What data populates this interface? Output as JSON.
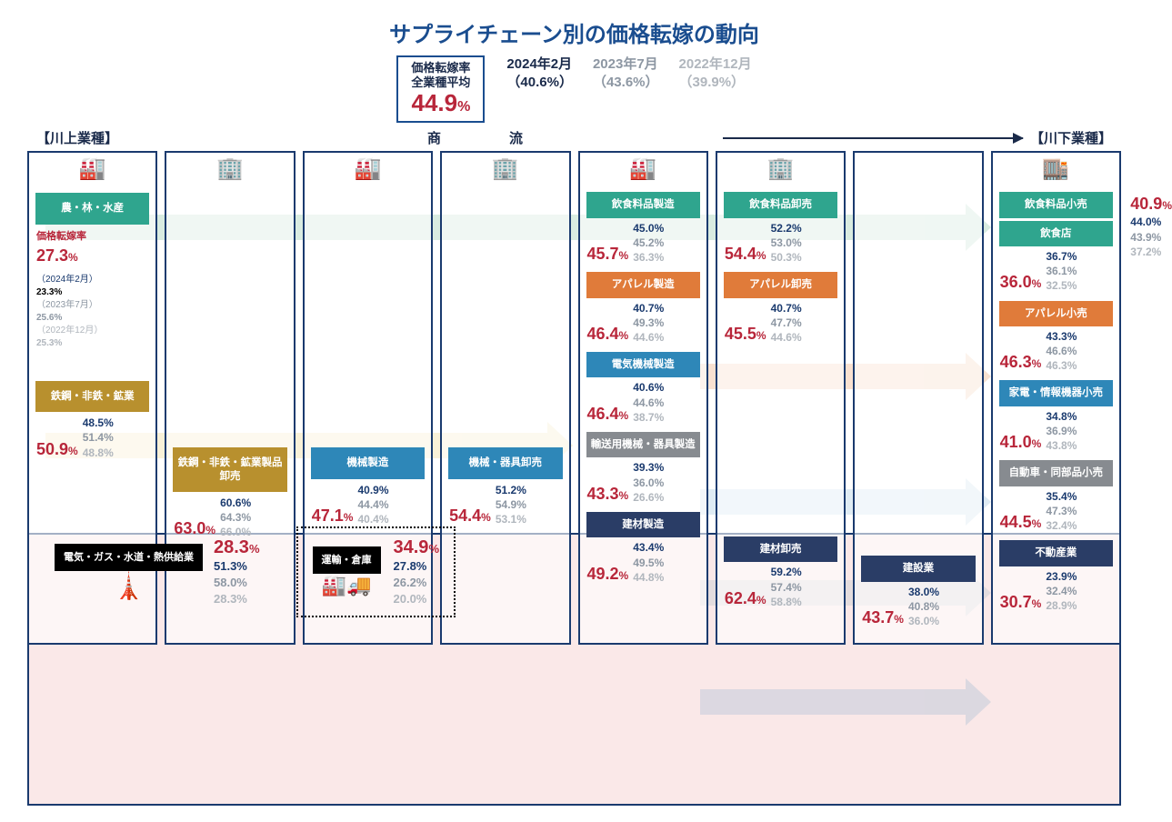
{
  "title": "サプライチェーン別の価格転嫁の動向",
  "avg": {
    "l1": "価格転嫁率",
    "l2": "全業種平均",
    "v": "44.9"
  },
  "periods": [
    {
      "d": "2024年2月",
      "v": "（40.6%）",
      "cls": ""
    },
    {
      "d": "2023年7月",
      "v": "（43.6%）",
      "cls": "gray"
    },
    {
      "d": "2022年12月",
      "v": "（39.9%）",
      "cls": "lgray"
    }
  ],
  "flow": {
    "left": "【川上業種】",
    "mid": "商　流",
    "right": "【川下業種】"
  },
  "colors": {
    "green": "#2fa58e",
    "olive": "#b8902e",
    "blue": "#2e87b8",
    "orange": "#e07b3a",
    "gray": "#878b90",
    "navy": "#2a3d66",
    "black": "#000"
  },
  "col1": {
    "icon": "🏭",
    "items": [
      {
        "box": "農・林・水産",
        "bg": "green",
        "label": "価格転嫁率",
        "main": "27.3",
        "hist": [
          {
            "d": "（2024年2月）",
            "v": "23.3%"
          },
          {
            "d": "（2023年7月）",
            "v": "25.6%",
            "cls": "g"
          },
          {
            "d": "（2022年12月）",
            "v": "25.3%",
            "cls": "lg"
          }
        ]
      },
      {
        "box": "鉄鋼・非鉄・鉱業",
        "bg": "olive",
        "main": "50.9",
        "h": [
          "48.5%",
          "51.4%",
          "48.8%"
        ]
      }
    ]
  },
  "col2": {
    "icon": "🏢",
    "items": [
      {
        "box": "鉄鋼・非鉄・鉱業製品卸売",
        "bg": "olive",
        "main": "63.0",
        "h": [
          "60.6%",
          "64.3%",
          "66.0%"
        ]
      }
    ]
  },
  "col3": {
    "icon": "🏭",
    "items": [
      {
        "box": "機械製造",
        "bg": "blue",
        "main": "47.1",
        "h": [
          "40.9%",
          "44.4%",
          "40.4%"
        ]
      }
    ]
  },
  "col4": {
    "icon": "🏢",
    "items": [
      {
        "box": "機械・器具卸売",
        "bg": "blue",
        "main": "54.4",
        "h": [
          "51.2%",
          "54.9%",
          "53.1%"
        ]
      }
    ]
  },
  "col5": {
    "icon": "🏭",
    "items": [
      {
        "box": "飲食料品製造",
        "bg": "green",
        "main": "45.7",
        "h": [
          "45.0%",
          "45.2%",
          "36.3%"
        ]
      },
      {
        "box": "アパレル製造",
        "bg": "orange",
        "main": "46.4",
        "h": [
          "40.7%",
          "49.3%",
          "44.6%"
        ]
      },
      {
        "box": "電気機械製造",
        "bg": "blue",
        "main": "46.4",
        "h": [
          "40.6%",
          "44.6%",
          "38.7%"
        ]
      },
      {
        "box": "輸送用機械・器具製造",
        "bg": "gray",
        "main": "43.3",
        "h": [
          "39.3%",
          "36.0%",
          "26.6%"
        ]
      },
      {
        "box": "建材製造",
        "bg": "navy",
        "main": "49.2",
        "h": [
          "43.4%",
          "49.5%",
          "44.8%"
        ]
      }
    ]
  },
  "col6": {
    "icon": "🏢",
    "items": [
      {
        "box": "飲食料品卸売",
        "bg": "green",
        "main": "54.4",
        "h": [
          "52.2%",
          "53.0%",
          "50.3%"
        ]
      },
      {
        "box": "アパレル卸売",
        "bg": "orange",
        "main": "45.5",
        "h": [
          "40.7%",
          "47.7%",
          "44.6%"
        ]
      },
      {
        "sp": 1
      },
      {
        "sp": 1
      },
      {
        "box": "建材卸売",
        "bg": "navy",
        "main": "62.4",
        "h": [
          "59.2%",
          "57.4%",
          "58.8%"
        ]
      }
    ]
  },
  "col7": {
    "icon": "",
    "items": [
      {
        "sp": 1
      },
      {
        "sp": 1
      },
      {
        "sp": 1
      },
      {
        "sp": 1
      },
      {
        "box": "建設業",
        "bg": "navy",
        "main": "43.7",
        "h": [
          "38.0%",
          "40.8%",
          "36.0%"
        ]
      }
    ]
  },
  "col8": {
    "icon": "🏬",
    "items": [
      {
        "box": "飲食料品小売",
        "bg": "green",
        "side": [
          "40.9",
          "44.0%",
          "43.9%",
          "37.2%"
        ]
      },
      {
        "box": "飲食店",
        "bg": "green",
        "main": "36.0",
        "h": [
          "36.7%",
          "36.1%",
          "32.5%"
        ]
      },
      {
        "box": "アパレル小売",
        "bg": "orange",
        "main": "46.3",
        "h": [
          "43.3%",
          "46.6%",
          "46.3%"
        ]
      },
      {
        "box": "家電・情報機器小売",
        "bg": "blue",
        "main": "41.0",
        "h": [
          "34.8%",
          "36.9%",
          "43.8%"
        ]
      },
      {
        "box": "自動車・同部品小売",
        "bg": "gray",
        "main": "44.5",
        "h": [
          "35.4%",
          "47.3%",
          "32.4%"
        ]
      },
      {
        "box": "不動産業",
        "bg": "navy",
        "main": "30.7",
        "h": [
          "23.9%",
          "32.4%",
          "28.9%"
        ]
      }
    ]
  },
  "util": {
    "label": "電気・ガス・水道・熱供給業",
    "main": "28.3",
    "h": [
      "51.3%",
      "58.0%",
      "28.3%"
    ]
  },
  "trans": {
    "label": "運輸・倉庫",
    "main": "34.9",
    "h": [
      "27.8%",
      "26.2%",
      "20.0%"
    ]
  }
}
